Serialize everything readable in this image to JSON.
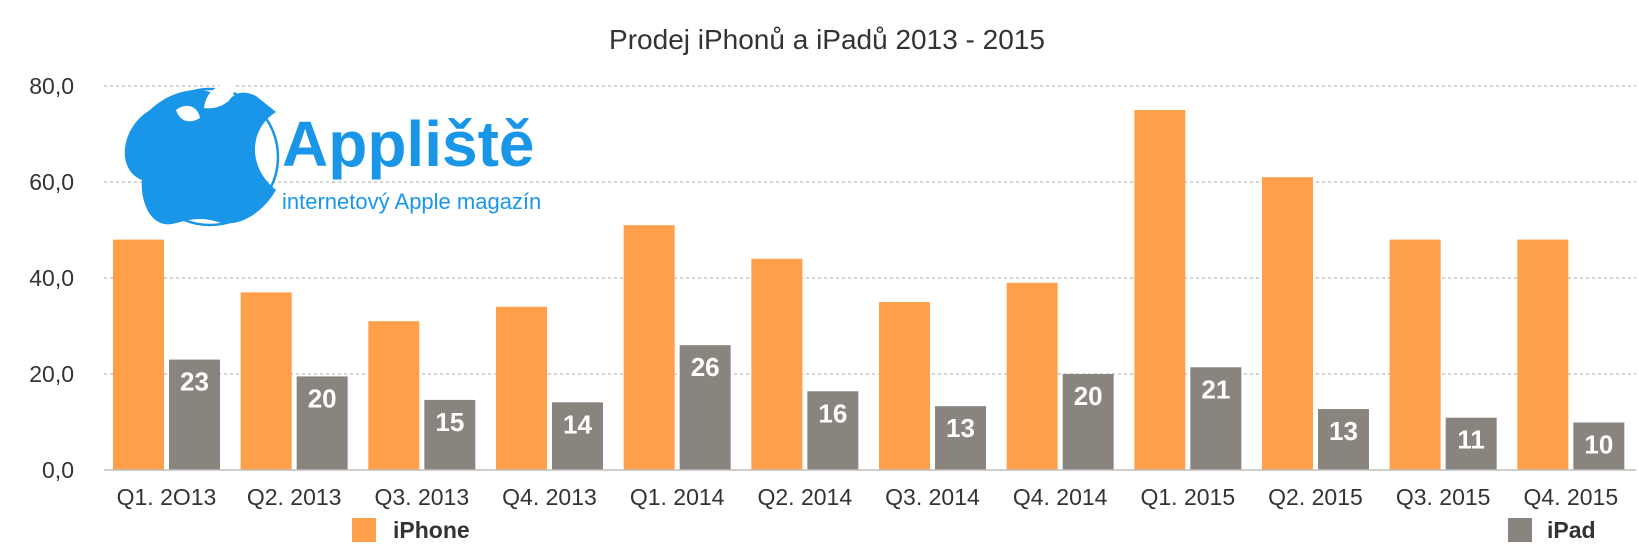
{
  "logo": {
    "name": "Appliště",
    "tagline": "internetový Apple magazín",
    "color": "#1a96e8",
    "icon": "apple-logo-icon"
  },
  "chart_data": {
    "type": "bar",
    "title": "Prodej iPhonů a iPadů 2013 - 2015",
    "xlabel": "",
    "ylabel": "",
    "ylim": [
      0,
      80
    ],
    "yticks": [
      0,
      20,
      40,
      60,
      80
    ],
    "ytick_labels": [
      "0,0",
      "20,0",
      "40,0",
      "60,0",
      "80,0"
    ],
    "grid": true,
    "categories": [
      "Q1. 2O13",
      "Q2. 2013",
      "Q3. 2013",
      "Q4. 2013",
      "Q1. 2014",
      "Q2. 2014",
      "Q3. 2014",
      "Q4. 2014",
      "Q1. 2015",
      "Q2. 2015",
      "Q3. 2015",
      "Q4. 2015"
    ],
    "series": [
      {
        "name": "iPhone",
        "color": "#ff9f4a",
        "values": [
          48,
          37,
          31,
          34,
          51,
          44,
          35,
          39,
          75,
          61,
          48,
          48
        ],
        "labels": []
      },
      {
        "name": "iPad",
        "color": "#8a847f",
        "values": [
          23,
          19.5,
          14.6,
          14.1,
          26,
          16.4,
          13.3,
          20,
          21.4,
          12.7,
          10.9,
          9.9
        ],
        "labels": [
          "23",
          "20",
          "15",
          "14",
          "26",
          "16",
          "13",
          "20",
          "21",
          "13",
          "11",
          "10"
        ]
      }
    ],
    "legend": [
      {
        "name": "iPhone",
        "color": "#ff9f4a",
        "placement": "bottom-left"
      },
      {
        "name": "iPad",
        "color": "#8a847f",
        "placement": "bottom-right"
      }
    ]
  }
}
